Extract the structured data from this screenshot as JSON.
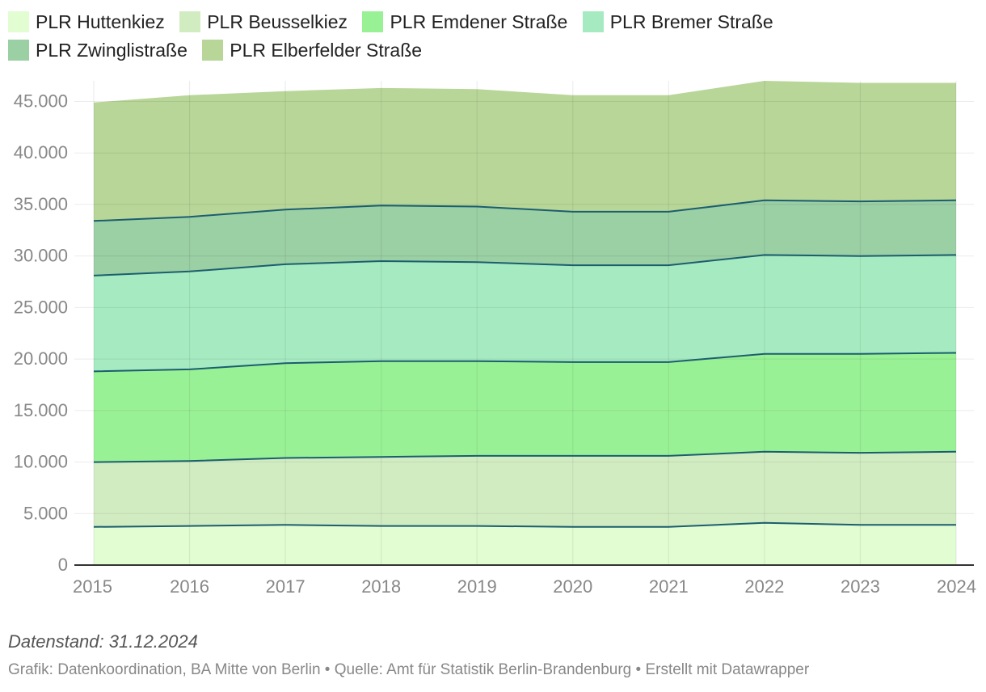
{
  "chart_data": {
    "type": "area",
    "stacked": true,
    "title": "",
    "xlabel": "",
    "ylabel": "",
    "x": [
      2015,
      2016,
      2017,
      2018,
      2019,
      2020,
      2021,
      2022,
      2023,
      2024
    ],
    "x_ticks": [
      "2015",
      "2016",
      "2017",
      "2018",
      "2019",
      "2020",
      "2021",
      "2022",
      "2023",
      "2024"
    ],
    "ylim": [
      0,
      47000
    ],
    "y_ticks": [
      0,
      5000,
      10000,
      15000,
      20000,
      25000,
      30000,
      35000,
      40000,
      45000
    ],
    "y_tick_labels": [
      "0",
      "5.000",
      "10.000",
      "15.000",
      "20.000",
      "25.000",
      "30.000",
      "35.000",
      "40.000",
      "45.000"
    ],
    "grid": true,
    "legend_position": "top",
    "series": [
      {
        "name": "PLR Huttenkiez",
        "color": "#e2fdd2",
        "values": [
          3700,
          3800,
          3900,
          3800,
          3800,
          3700,
          3700,
          4100,
          3900,
          3900
        ]
      },
      {
        "name": "PLR Beusselkiez",
        "color": "#d2ecc2",
        "values": [
          6300,
          6300,
          6500,
          6700,
          6800,
          6900,
          6900,
          6900,
          7000,
          7100
        ]
      },
      {
        "name": "PLR Emdener Straße",
        "color": "#99f195",
        "values": [
          8800,
          8900,
          9200,
          9300,
          9200,
          9100,
          9100,
          9500,
          9600,
          9600
        ]
      },
      {
        "name": "PLR Bremer Straße",
        "color": "#a6eac1",
        "values": [
          9300,
          9500,
          9600,
          9700,
          9600,
          9400,
          9400,
          9600,
          9500,
          9500
        ]
      },
      {
        "name": "PLR Zwinglistraße",
        "color": "#9bcfa4",
        "values": [
          5300,
          5300,
          5300,
          5400,
          5400,
          5200,
          5200,
          5300,
          5300,
          5300
        ]
      },
      {
        "name": "PLR Elberfelder Straße",
        "color": "#b8d698",
        "values": [
          11500,
          11800,
          11500,
          11400,
          11400,
          11300,
          11300,
          11600,
          11500,
          11400
        ]
      }
    ],
    "boundary_line_color": "#1b5e6e"
  },
  "legend": {
    "items": [
      {
        "label": "PLR Huttenkiez",
        "color": "#e2fdd2"
      },
      {
        "label": "PLR Beusselkiez",
        "color": "#d2ecc2"
      },
      {
        "label": "PLR Emdener Straße",
        "color": "#99f195"
      },
      {
        "label": "PLR Bremer Straße",
        "color": "#a6eac1"
      },
      {
        "label": "PLR Zwinglistraße",
        "color": "#9bcfa4"
      },
      {
        "label": "PLR Elberfelder Straße",
        "color": "#b8d698"
      }
    ]
  },
  "footer": {
    "note": "Datenstand: 31.12.2024",
    "credit": "Grafik: Datenkoordination, BA Mitte von Berlin • Quelle: Amt für Statistik Berlin-Brandenburg • Erstellt mit Datawrapper"
  }
}
